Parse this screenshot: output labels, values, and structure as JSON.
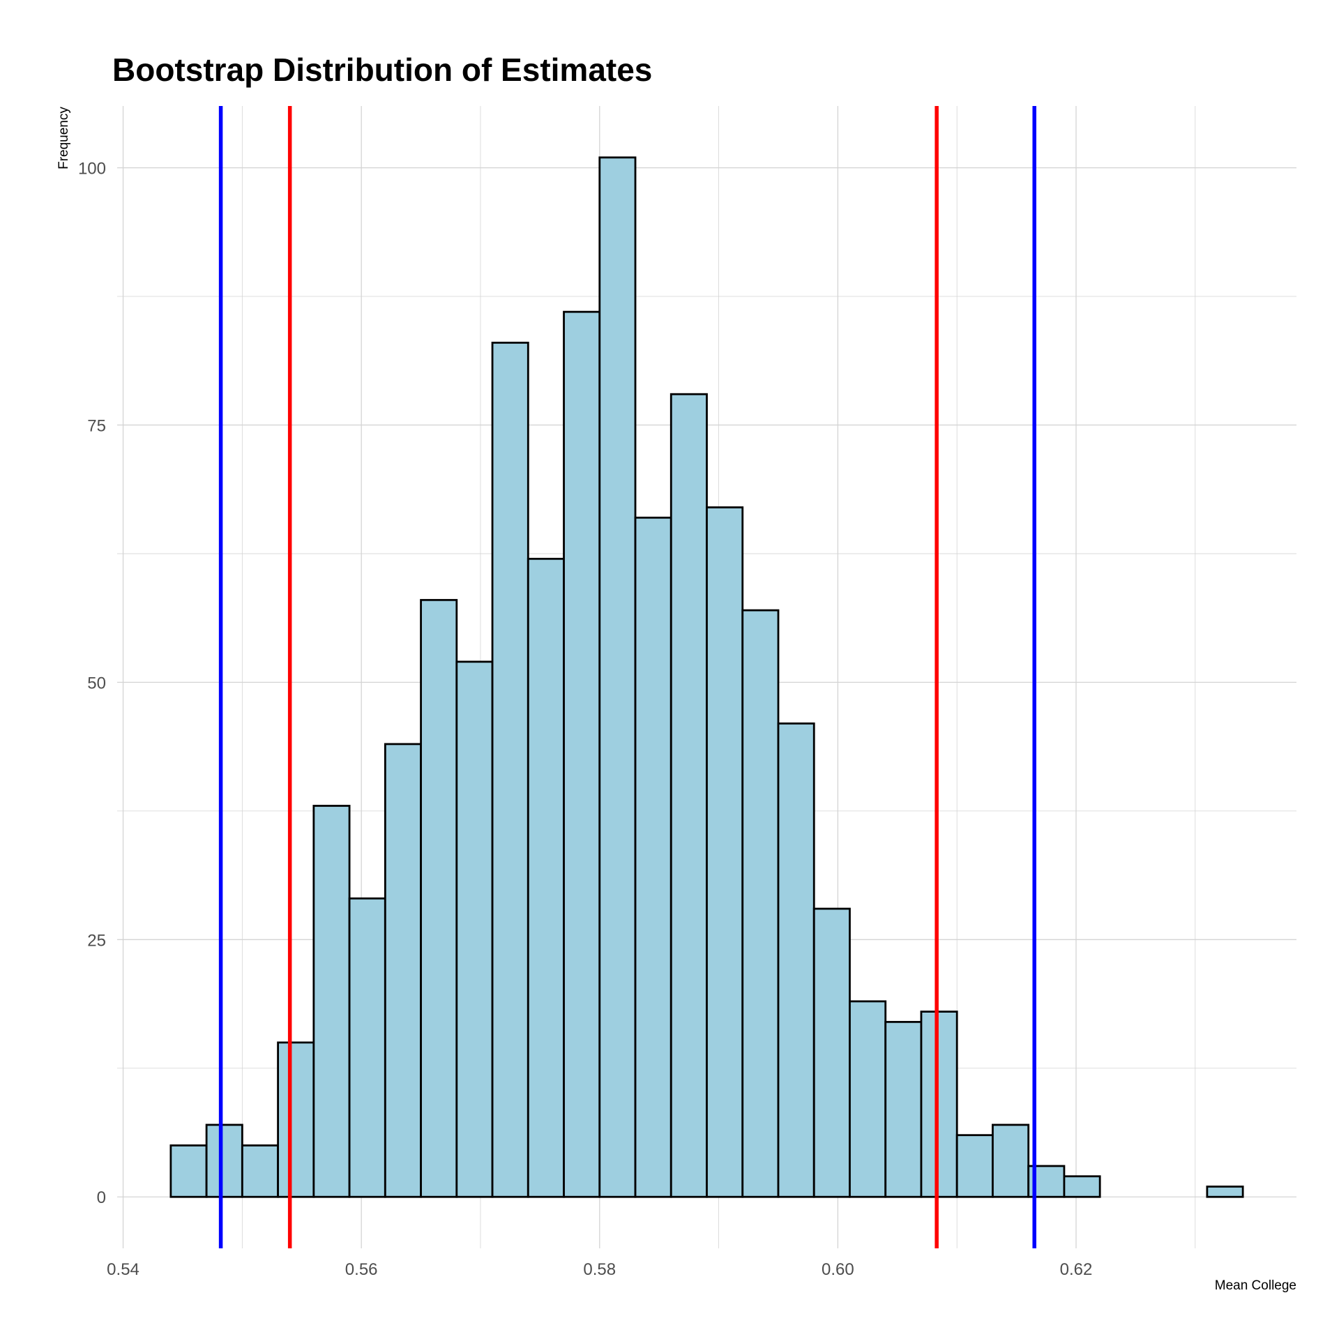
{
  "chart_data": {
    "type": "bar",
    "title": "Bootstrap Distribution of Estimates",
    "xlabel": "Mean College",
    "ylabel": "Frequency",
    "xlim": [
      0.5395,
      0.6385
    ],
    "ylim": [
      -5,
      106
    ],
    "xticks": [
      0.54,
      0.56,
      0.58,
      0.6,
      0.62
    ],
    "xtick_labels": [
      "0.54",
      "0.56",
      "0.58",
      "0.60",
      "0.62"
    ],
    "yticks": [
      0,
      25,
      50,
      75,
      100
    ],
    "ytick_labels": [
      "0",
      "25",
      "50",
      "75",
      "100"
    ],
    "x_minor_gridlines": [
      0.55,
      0.57,
      0.59,
      0.61,
      0.63
    ],
    "y_minor_gridlines": [
      12.5,
      37.5,
      62.5,
      87.5
    ],
    "grid": true,
    "bins": {
      "start": 0.544,
      "width": 0.003,
      "counts": [
        5,
        7,
        5,
        15,
        38,
        29,
        44,
        58,
        52,
        83,
        62,
        86,
        101,
        66,
        78,
        67,
        57,
        46,
        28,
        19,
        17,
        18,
        6,
        7,
        3,
        2,
        0,
        0,
        0,
        1
      ]
    },
    "vlines": [
      {
        "x": 0.5482,
        "color": "#0000ff"
      },
      {
        "x": 0.554,
        "color": "#ff0000"
      },
      {
        "x": 0.6083,
        "color": "#ff0000"
      },
      {
        "x": 0.6165,
        "color": "#0000ff"
      }
    ],
    "colors": {
      "bar_fill": "#9ecfe0",
      "bar_outline": "#000000",
      "grid": "#d4d4d4"
    }
  }
}
